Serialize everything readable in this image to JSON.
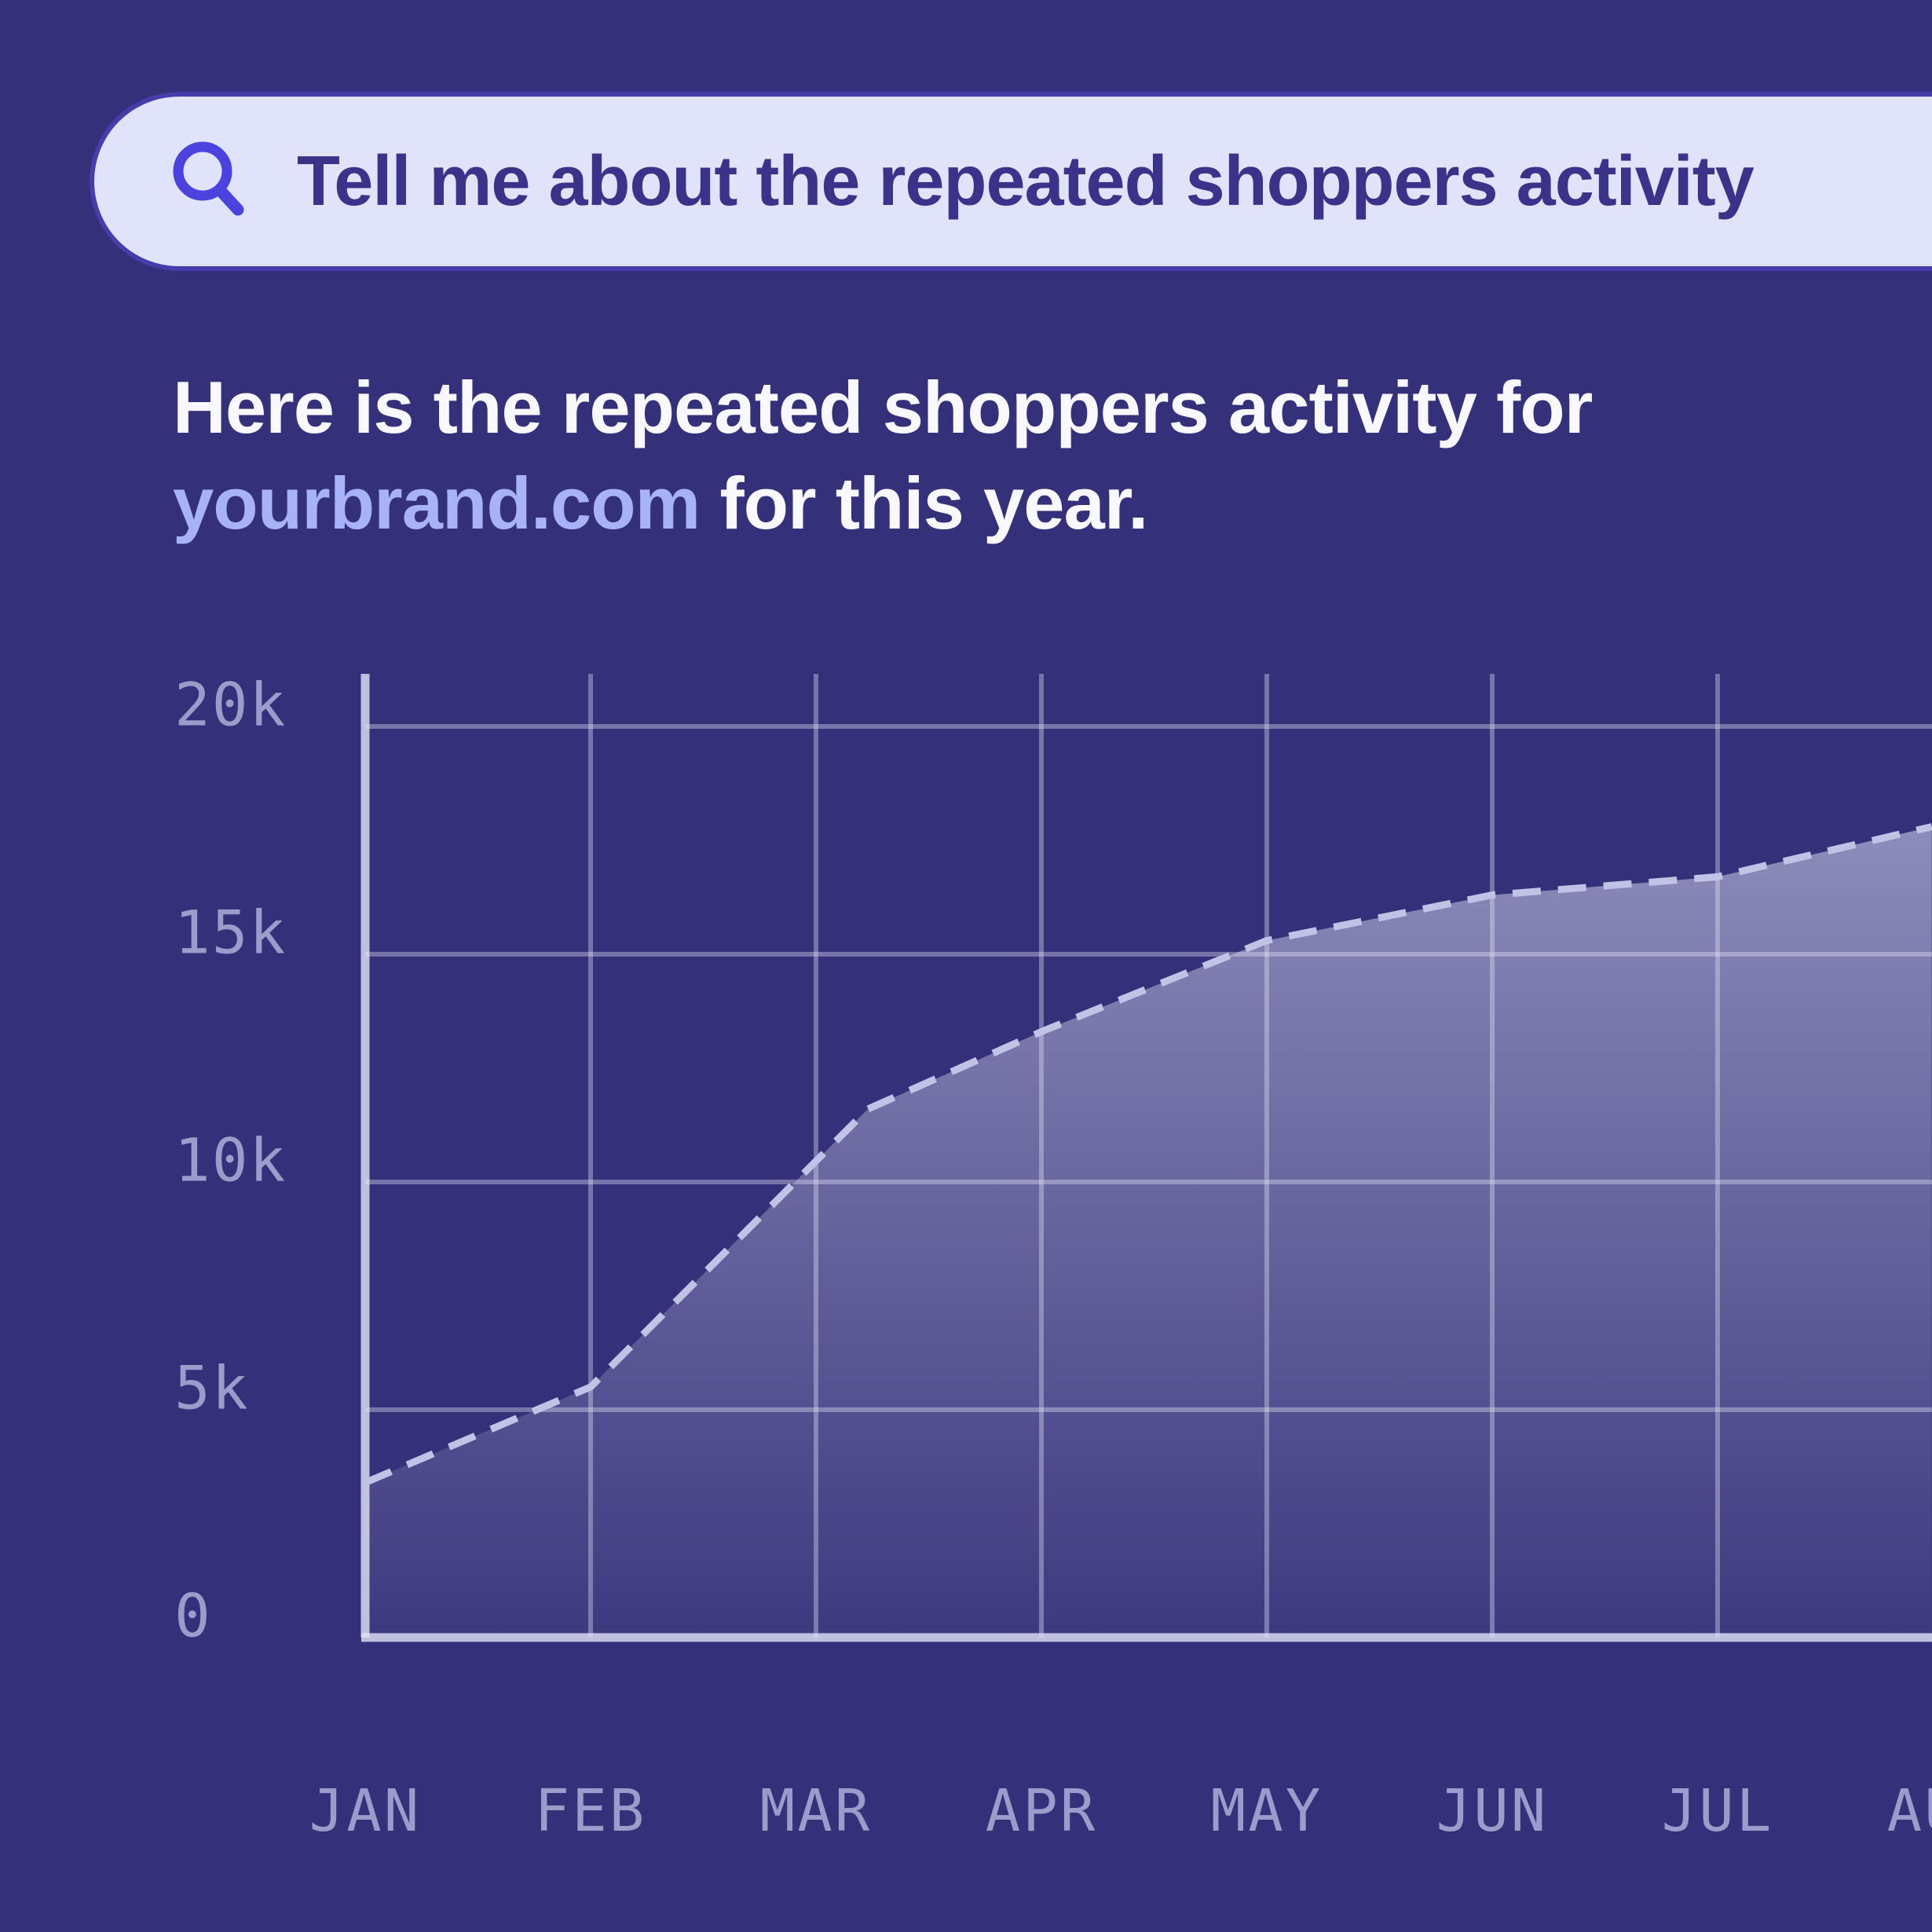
{
  "background_color": "#343079",
  "search": {
    "query": "Tell me about the repeated shoppers activity",
    "icon": "magnifier-icon",
    "pill_background": "#E0E3FA",
    "icon_color": "#4C43DF",
    "text_color": "#3A3389"
  },
  "response": {
    "line1": "Here is the repeated shoppers activity for",
    "brand": "yourbrand.com",
    "line2_rest": " for this year.",
    "brand_color": "#A7B2F8",
    "text_color": "#F8F8FE"
  },
  "chart_data": {
    "type": "area",
    "title": "",
    "xlabel": "",
    "ylabel": "",
    "grid": true,
    "line_style": "dashed",
    "categories": [
      "JAN",
      "FEB",
      "MAR",
      "APR",
      "MAY",
      "JUN",
      "JUL",
      "AUG"
    ],
    "monthly_values_k": [
      3.4,
      5.5,
      10.5,
      13.3,
      15.3,
      16.3,
      16.7,
      17.8
    ],
    "line_points": [
      {
        "m": 0,
        "v": 3.4
      },
      {
        "m": 1,
        "v": 5.5
      },
      {
        "m": 2.23,
        "v": 11.6
      },
      {
        "m": 3,
        "v": 13.3
      },
      {
        "m": 4,
        "v": 15.3
      },
      {
        "m": 5,
        "v": 16.3
      },
      {
        "m": 6,
        "v": 16.7
      },
      {
        "m": 6.95,
        "v": 17.8
      }
    ],
    "yticks": [
      {
        "v": 0,
        "label": "0"
      },
      {
        "v": 5,
        "label": "5k"
      },
      {
        "v": 10,
        "label": "10k"
      },
      {
        "v": 15,
        "label": "15k"
      },
      {
        "v": 20,
        "label": "20k"
      }
    ],
    "ylim": [
      0,
      21.1
    ],
    "right_edge_clipped": true,
    "colors": {
      "gridline": "#E2E4F8",
      "axis": "#E2E4F8",
      "dashed_line": "#C0C3E6",
      "area_top": "#E6E8FA",
      "tick_label": "#9A9DCB"
    }
  }
}
